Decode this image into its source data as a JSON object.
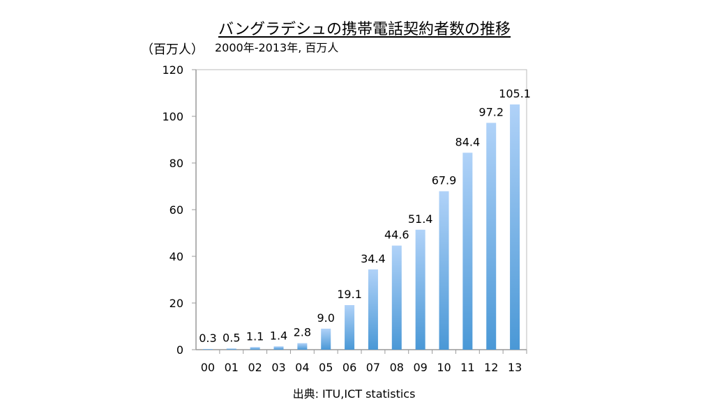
{
  "chart_data": {
    "type": "bar",
    "title": "バングラデシュの携帯電話契約者数の推移",
    "subtitle": "2000年-2013年, 百万人",
    "ylabel": "（百万人）",
    "xlabel": "",
    "source": "出典: ITU,ICT statistics",
    "categories": [
      "00",
      "01",
      "02",
      "03",
      "04",
      "05",
      "06",
      "07",
      "08",
      "09",
      "10",
      "11",
      "12",
      "13"
    ],
    "values": [
      0.3,
      0.5,
      1.1,
      1.4,
      2.8,
      9.0,
      19.1,
      34.4,
      44.6,
      51.4,
      67.9,
      84.4,
      97.2,
      105.1
    ],
    "data_labels": [
      "0.3",
      "0.5",
      "1.1",
      "1.4",
      "2.8",
      "9.0",
      "19.1",
      "34.4",
      "44.6",
      "51.4",
      "67.9",
      "84.4",
      "97.2",
      "105.1"
    ],
    "ylim": [
      0,
      120
    ],
    "yticks": [
      0,
      20,
      40,
      60,
      80,
      100,
      120
    ],
    "grid": false,
    "legend": "none",
    "colors": {
      "bar_top": "#b0d2f8",
      "bar_bottom": "#4a98d6",
      "axis": "#999999"
    }
  }
}
